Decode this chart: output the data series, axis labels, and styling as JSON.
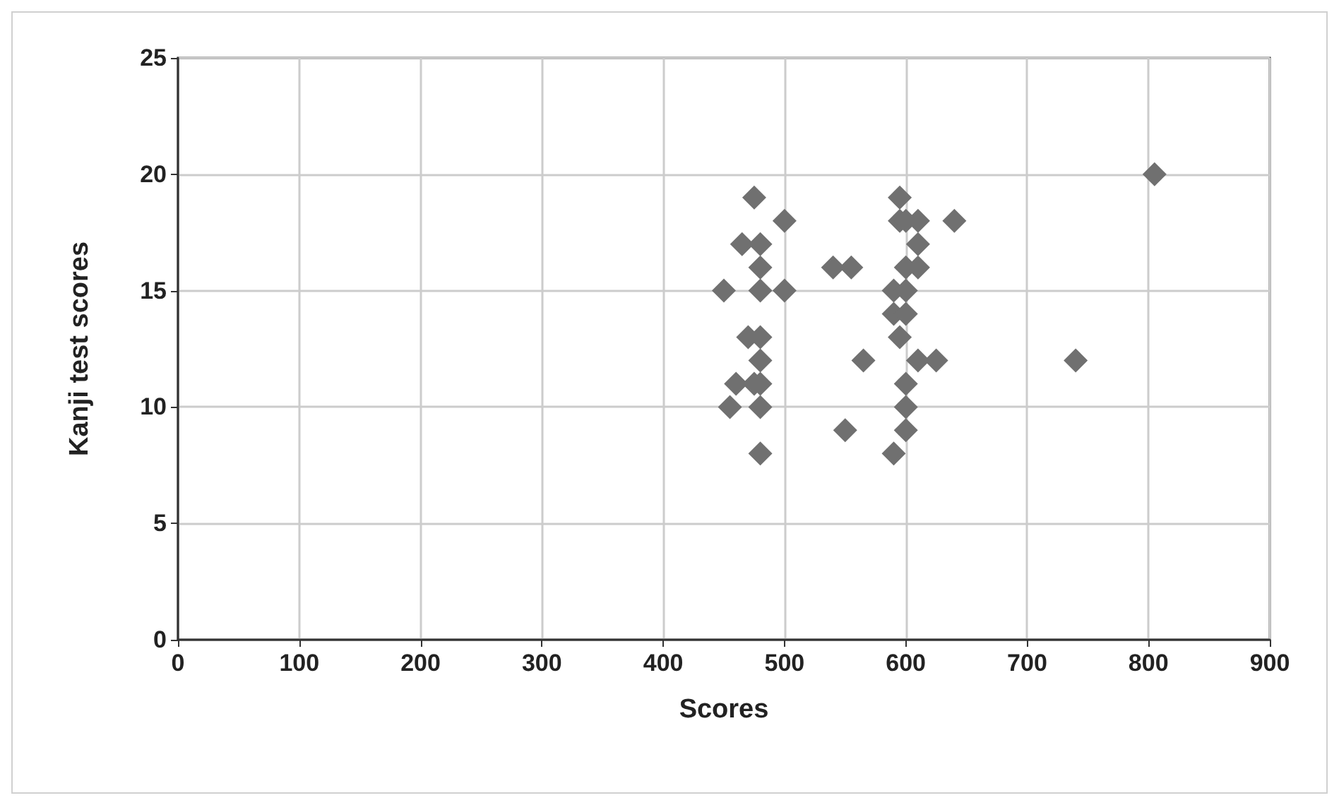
{
  "chart_data": {
    "type": "scatter",
    "xlabel": "Scores",
    "ylabel": "Kanji test scores",
    "xlim": [
      0,
      900
    ],
    "xticks": [
      0,
      100,
      200,
      300,
      400,
      500,
      600,
      700,
      800,
      900
    ],
    "ylim": [
      0,
      25
    ],
    "yticks": [
      0,
      5,
      10,
      15,
      20,
      25
    ],
    "grid": true,
    "marker": "diamond",
    "series": [
      {
        "color": "#707070",
        "x": [
          475,
          500,
          465,
          480,
          480,
          450,
          480,
          500,
          470,
          480,
          480,
          460,
          475,
          480,
          455,
          480,
          480,
          595,
          595,
          600,
          610,
          640,
          610,
          540,
          555,
          600,
          610,
          590,
          600,
          590,
          600,
          595,
          565,
          610,
          625,
          600,
          600,
          600,
          550,
          590,
          740,
          805
        ],
        "values": [
          19,
          18,
          17,
          17,
          16,
          15,
          15,
          15,
          13,
          13,
          12,
          11,
          11,
          11,
          10,
          10,
          8,
          19,
          18,
          18,
          18,
          18,
          17,
          16,
          16,
          16,
          16,
          15,
          15,
          14,
          14,
          13,
          12,
          12,
          12,
          11,
          10,
          9,
          9,
          8,
          12,
          20
        ]
      }
    ]
  }
}
